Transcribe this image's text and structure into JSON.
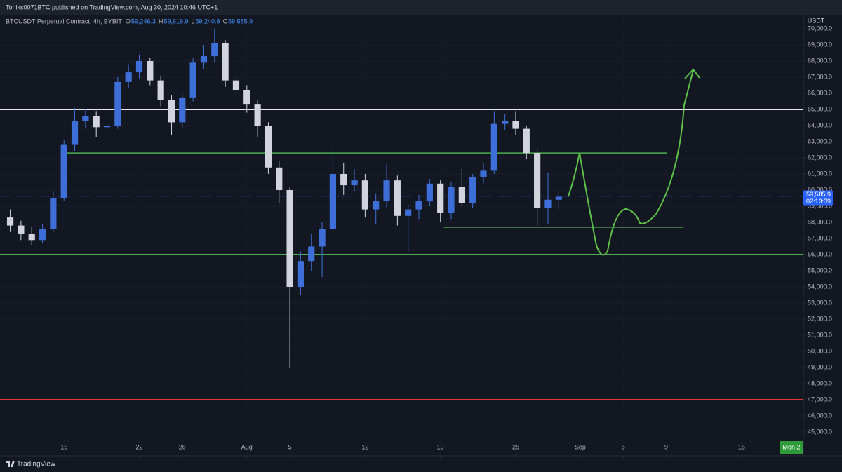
{
  "header": {
    "publisher": "Toniks0071BTC published on TradingView.com, Aug 30, 2024 10:46 UTC+1",
    "symbol": "BTCUSDT Perpetual Contract, 4h, BYBIT",
    "ohlc": [
      {
        "key": "O",
        "value": "59,246.3"
      },
      {
        "key": "H",
        "value": "59,619.9"
      },
      {
        "key": "L",
        "value": "59,240.8"
      },
      {
        "key": "C",
        "value": "59,585.9"
      }
    ],
    "currency": "USDT",
    "countdown": "02:13:39",
    "crosshair_label": "Mon 2",
    "brand": "TradingView"
  },
  "chart_data": {
    "type": "candlestick",
    "x": [
      10,
      11,
      12,
      13,
      14,
      15,
      16,
      17,
      18,
      19,
      20,
      21,
      22,
      23,
      24,
      25,
      26,
      27,
      28,
      29,
      30,
      31,
      32,
      33,
      34,
      35,
      36,
      37,
      38,
      39,
      40,
      41,
      42,
      43,
      44,
      45,
      46,
      47,
      48,
      49,
      50,
      51,
      52,
      53,
      54,
      55,
      56,
      57,
      58,
      59,
      60,
      61
    ],
    "open": [
      58300,
      57800,
      57300,
      56900,
      57600,
      59500,
      62800,
      64300,
      64600,
      63900,
      64000,
      66700,
      67300,
      68000,
      66800,
      65600,
      64200,
      65700,
      67900,
      68300,
      69100,
      66800,
      66200,
      65300,
      64000,
      61400,
      60000,
      54000,
      55600,
      56500,
      57600,
      61000,
      60300,
      60600,
      58800,
      59300,
      60600,
      58400,
      58800,
      59300,
      60400,
      58600,
      60200,
      59200,
      60800,
      61200,
      64100,
      64300,
      63800,
      62300,
      58900,
      59400
    ],
    "high": [
      58800,
      58100,
      57700,
      57900,
      59900,
      63100,
      65100,
      65000,
      64900,
      64500,
      67000,
      67800,
      68400,
      68200,
      67100,
      65900,
      66000,
      68200,
      69000,
      70000,
      69300,
      67000,
      66500,
      65600,
      64200,
      61800,
      60200,
      56200,
      57300,
      58000,
      62700,
      61700,
      61300,
      61000,
      59800,
      61600,
      60900,
      59100,
      59700,
      60700,
      60600,
      60500,
      61300,
      61000,
      61700,
      64900,
      64700,
      64900,
      64000,
      62600,
      61100,
      59900
    ],
    "low": [
      57400,
      56900,
      56600,
      56700,
      57400,
      59300,
      62400,
      63800,
      63300,
      63500,
      63800,
      66300,
      66900,
      66500,
      65200,
      63400,
      63800,
      65500,
      67500,
      67900,
      66400,
      65800,
      64800,
      63300,
      61000,
      59200,
      49000,
      53500,
      55000,
      54600,
      57300,
      59700,
      59900,
      58300,
      57900,
      58900,
      57800,
      56100,
      58200,
      59000,
      58000,
      58200,
      59000,
      58900,
      60400,
      61000,
      63700,
      63400,
      61900,
      57800,
      57900,
      58800
    ],
    "close": [
      57800,
      57300,
      56900,
      57600,
      59500,
      62800,
      64300,
      64600,
      63900,
      64000,
      66700,
      67300,
      68000,
      66800,
      65600,
      64200,
      65700,
      67900,
      68300,
      69100,
      66800,
      66200,
      65300,
      64000,
      61400,
      60000,
      54000,
      55600,
      56500,
      57600,
      61000,
      60300,
      60600,
      58800,
      59300,
      60600,
      58400,
      58800,
      59300,
      60400,
      58600,
      60200,
      59200,
      60800,
      61200,
      64100,
      64300,
      63800,
      62300,
      58900,
      59400,
      59585.9
    ],
    "up_color": "#3e6fd8",
    "down_color": "#d1d4dc",
    "xlim": [
      9.05,
      83.75
    ],
    "xticks": [
      {
        "value": 15,
        "label": "15"
      },
      {
        "value": 22,
        "label": "22"
      },
      {
        "value": 26,
        "label": "26"
      },
      {
        "value": 32,
        "label": "Aug"
      },
      {
        "value": 36,
        "label": "5"
      },
      {
        "value": 43,
        "label": "12"
      },
      {
        "value": 50,
        "label": "19"
      },
      {
        "value": 57,
        "label": "26"
      },
      {
        "value": 63,
        "label": "Sep"
      },
      {
        "value": 67,
        "label": "5"
      },
      {
        "value": 71,
        "label": "9"
      },
      {
        "value": 78,
        "label": "16"
      }
    ],
    "ylim": [
      43520,
      70870
    ],
    "yticks": [
      {
        "value": 45000,
        "label": "45,000.0"
      },
      {
        "value": 46000,
        "label": "46,000.0"
      },
      {
        "value": 47000,
        "label": "47,000.0"
      },
      {
        "value": 48000,
        "label": "48,000.0"
      },
      {
        "value": 49000,
        "label": "49,000.0"
      },
      {
        "value": 50000,
        "label": "50,000.0"
      },
      {
        "value": 51000,
        "label": "51,000.0"
      },
      {
        "value": 52000,
        "label": "52,000.0"
      },
      {
        "value": 53000,
        "label": "53,000.0"
      },
      {
        "value": 54000,
        "label": "54,000.0"
      },
      {
        "value": 55000,
        "label": "55,000.0"
      },
      {
        "value": 56000,
        "label": "56,000.0"
      },
      {
        "value": 57000,
        "label": "57,000.0"
      },
      {
        "value": 58000,
        "label": "58,000.0"
      },
      {
        "value": 59000,
        "label": "59,000.0"
      },
      {
        "value": 60000,
        "label": "60,000.0"
      },
      {
        "value": 61000,
        "label": "61,000.0"
      },
      {
        "value": 62000,
        "label": "62,000.0"
      },
      {
        "value": 63000,
        "label": "63,000.0"
      },
      {
        "value": 64000,
        "label": "64,000.0"
      },
      {
        "value": 65000,
        "label": "65,000.0"
      },
      {
        "value": 66000,
        "label": "66,000.0"
      },
      {
        "value": 67000,
        "label": "67,000.0"
      },
      {
        "value": 68000,
        "label": "68,000.0"
      },
      {
        "value": 69000,
        "label": "69,000.0"
      },
      {
        "value": 70000,
        "label": "70,000.0"
      }
    ],
    "grid": true,
    "last_price": {
      "value": 59585.9,
      "label": "59,585.9",
      "color": "#2962ff"
    },
    "levels": [
      {
        "value": 65000,
        "color": "#e8e8e8"
      },
      {
        "value": 62300,
        "color": "#4caf50",
        "from": 15.1,
        "to": 71.1
      },
      {
        "value": 57700,
        "color": "#4caf50",
        "from": 50.3,
        "to": 72.6
      },
      {
        "value": 56000,
        "color": "#4caf50"
      },
      {
        "value": 47000,
        "color": "#e53935"
      }
    ]
  }
}
